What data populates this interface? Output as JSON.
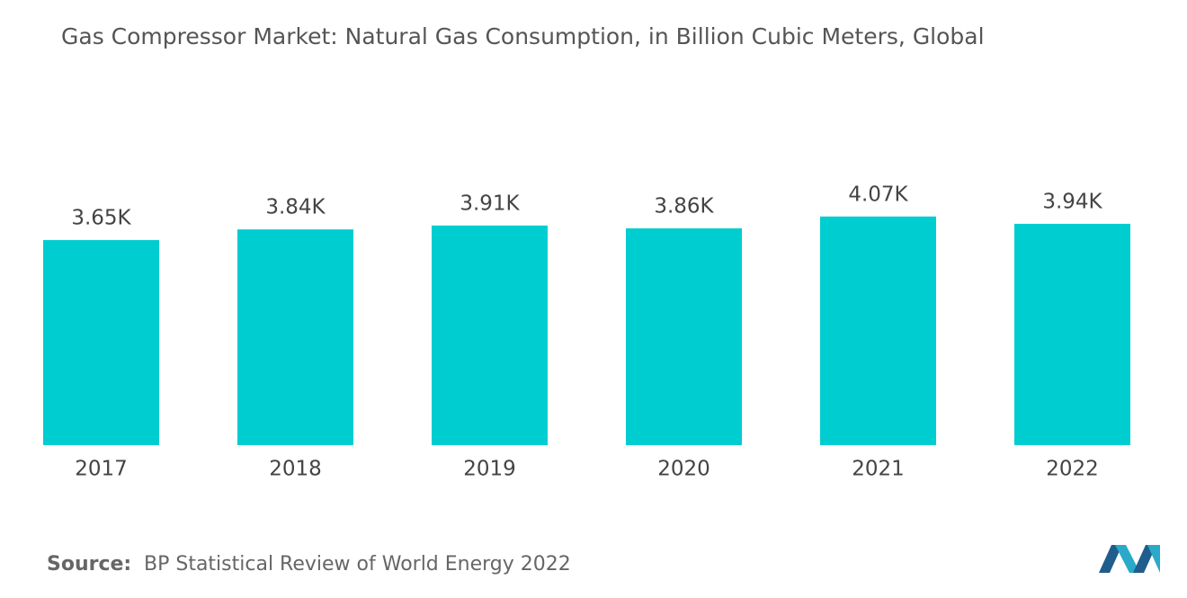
{
  "chart_data": {
    "type": "bar",
    "title": "Gas Compressor Market: Natural Gas Consumption, in Billion Cubic Meters, Global",
    "categories": [
      "2017",
      "2018",
      "2019",
      "2020",
      "2021",
      "2022"
    ],
    "values": [
      3650,
      3840,
      3910,
      3860,
      4070,
      3940
    ],
    "value_labels": [
      "3.65K",
      "3.84K",
      "3.91K",
      "3.86K",
      "4.07K",
      "3.94K"
    ],
    "color": "#00cdd0",
    "source": {
      "label": "Source:",
      "text": "BP Statistical Review of World Energy 2022"
    }
  }
}
